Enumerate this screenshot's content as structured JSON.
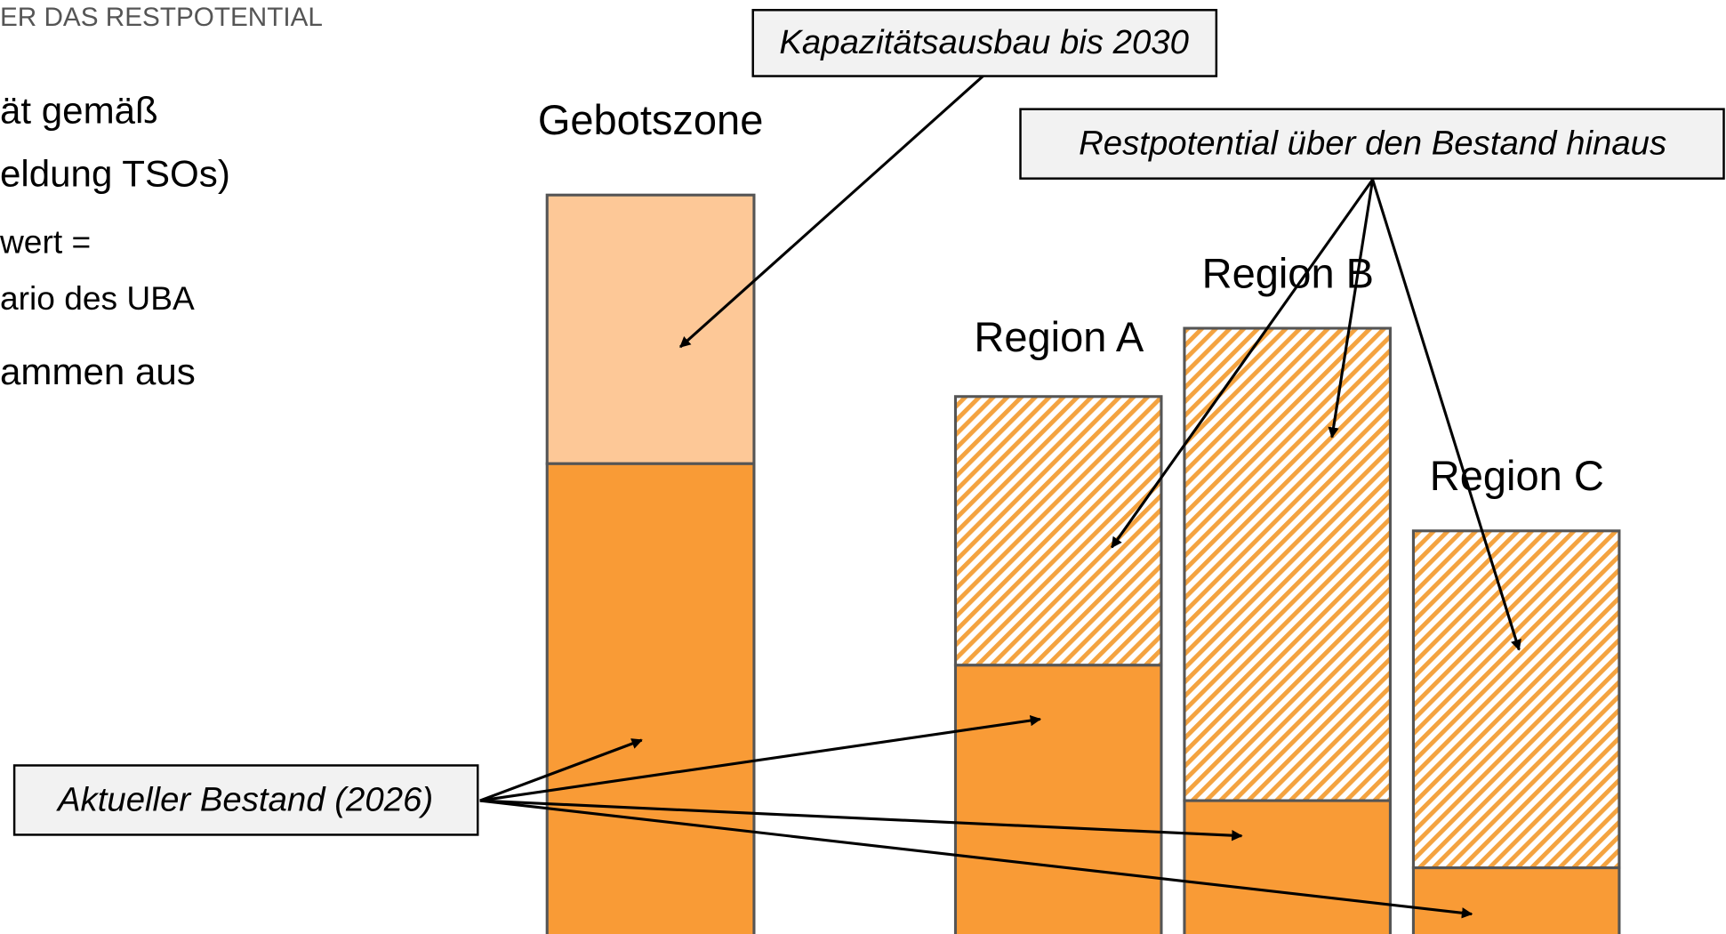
{
  "header": {
    "title": "ER DAS RESTPOTENTIAL"
  },
  "left_text": [
    "ät gemäß",
    "eldung TSOs)",
    "wert =",
    "ario des UBA",
    "ammen aus"
  ],
  "bars": {
    "gebotszone": "Gebotszone",
    "region_a": "Region A",
    "region_b": "Region B",
    "region_c": "Region C"
  },
  "callouts": {
    "capacity": "Kapazitätsausbau bis 2030",
    "potential": "Restpotential über den Bestand hinaus",
    "current": "Aktueller Bestand (2026)"
  }
}
